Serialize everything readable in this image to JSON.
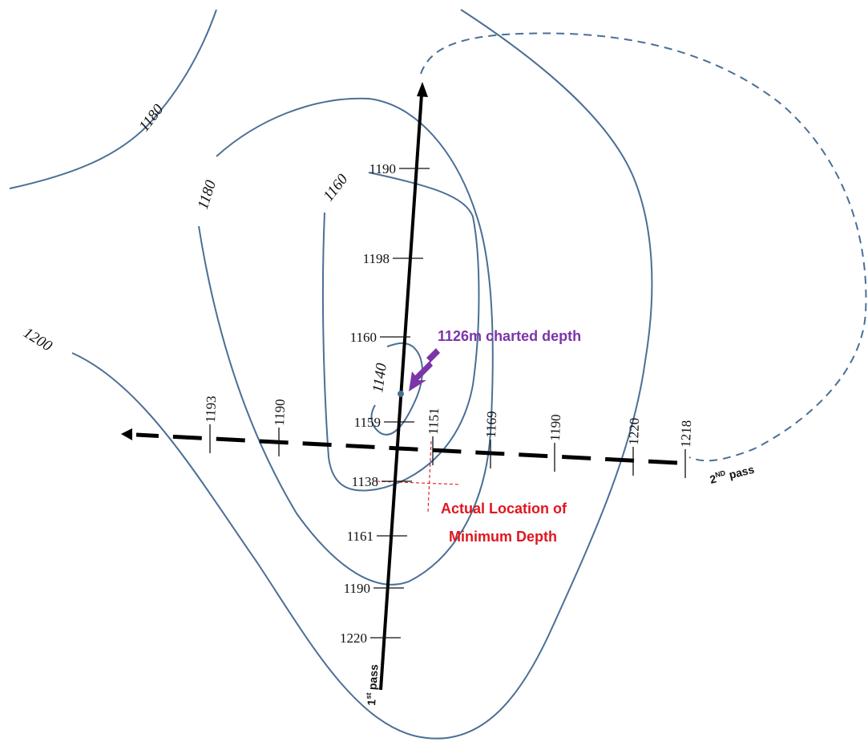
{
  "contour_labels": {
    "c1180_top_left": "1180",
    "c1180_inner": "1180",
    "c1160": "1160",
    "c1140": "1140",
    "c1200": "1200"
  },
  "first_pass": {
    "label": "1",
    "label_sup": "st",
    "label_suffix": " pass",
    "soundings": [
      "1190",
      "1198",
      "1160",
      "1159",
      "1138",
      "1161",
      "1190",
      "1220"
    ]
  },
  "second_pass": {
    "label": "2",
    "label_sup": "ND",
    "label_suffix": " pass",
    "soundings": [
      "1193",
      "1190",
      "1151",
      "1169",
      "1190",
      "1220",
      "1218"
    ]
  },
  "annotations": {
    "charted_depth": "1126m charted depth",
    "actual_location_line1": "Actual Location of",
    "actual_location_line2": "Minimum Depth"
  },
  "colors": {
    "contour": "#4a6f96",
    "pass_line": "#000000",
    "charted_annotation": "#7b35a8",
    "actual_annotation": "#e0161f"
  }
}
